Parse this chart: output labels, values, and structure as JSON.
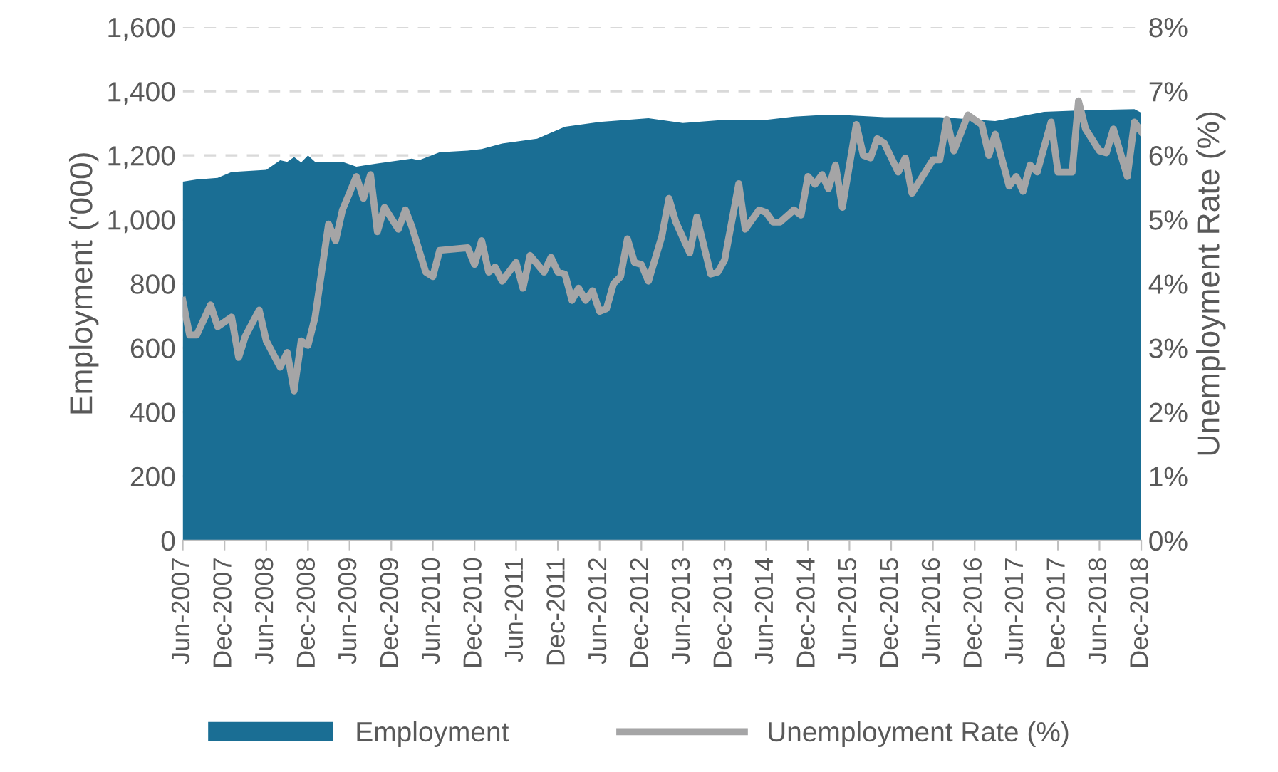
{
  "chart_data": {
    "type": "area",
    "ylabel": "Employment ('000)",
    "y2label": "Unemployment Rate (%)",
    "series": [
      {
        "name": "Employment",
        "color": "#1a6e94",
        "x": [
          "2007-06",
          "2007-08",
          "2007-11",
          "2008-01",
          "2008-06",
          "2008-08",
          "2008-09",
          "2008-10",
          "2008-11",
          "2008-12",
          "2009-01",
          "2009-05",
          "2009-07",
          "2009-10",
          "2010-03",
          "2010-04",
          "2010-07",
          "2010-11",
          "2011-01",
          "2011-04",
          "2011-09",
          "2012-01",
          "2012-06",
          "2013-01",
          "2013-06",
          "2013-12",
          "2014-06",
          "2014-10",
          "2015-02",
          "2015-05",
          "2015-11",
          "2016-07",
          "2017-03",
          "2017-10",
          "2018-04",
          "2018-11",
          "2018-12"
        ],
        "values": [
          1118,
          1125,
          1130,
          1148,
          1155,
          1185,
          1180,
          1195,
          1178,
          1200,
          1180,
          1180,
          1165,
          1175,
          1190,
          1185,
          1210,
          1215,
          1220,
          1237,
          1252,
          1289,
          1304,
          1316,
          1301,
          1311,
          1311,
          1321,
          1326,
          1326,
          1319,
          1319,
          1307,
          1336,
          1341,
          1344,
          1333
        ]
      },
      {
        "name": "Unemployment Rate (%)",
        "type": "line",
        "axis": "y2",
        "color": "#a5a5a6",
        "x": [
          "2007-06",
          "2007-07",
          "2007-08",
          "2007-10",
          "2007-11",
          "2008-01",
          "2008-02",
          "2008-03",
          "2008-05",
          "2008-06",
          "2008-08",
          "2008-09",
          "2008-10",
          "2008-11",
          "2008-12",
          "2009-01",
          "2009-03",
          "2009-04",
          "2009-05",
          "2009-07",
          "2009-08",
          "2009-09",
          "2009-10",
          "2009-11",
          "2010-01",
          "2010-02",
          "2010-03",
          "2010-05",
          "2010-06",
          "2010-07",
          "2010-11",
          "2010-12",
          "2011-01",
          "2011-02",
          "2011-03",
          "2011-04",
          "2011-06",
          "2011-07",
          "2011-08",
          "2011-10",
          "2011-11",
          "2011-12",
          "2012-01",
          "2012-02",
          "2012-03",
          "2012-04",
          "2012-05",
          "2012-06",
          "2012-07",
          "2012-08",
          "2012-09",
          "2012-10",
          "2012-11",
          "2012-12",
          "2013-01",
          "2013-03",
          "2013-04",
          "2013-05",
          "2013-07",
          "2013-08",
          "2013-10",
          "2013-11",
          "2013-12",
          "2014-02",
          "2014-03",
          "2014-05",
          "2014-06",
          "2014-07",
          "2014-08",
          "2014-10",
          "2014-11",
          "2014-12",
          "2015-01",
          "2015-02",
          "2015-03",
          "2015-04",
          "2015-05",
          "2015-07",
          "2015-08",
          "2015-09",
          "2015-10",
          "2015-11",
          "2016-01",
          "2016-02",
          "2016-03",
          "2016-06",
          "2016-07",
          "2016-08",
          "2016-09",
          "2016-11",
          "2017-01",
          "2017-02",
          "2017-03",
          "2017-05",
          "2017-06",
          "2017-07",
          "2017-08",
          "2017-09",
          "2017-11",
          "2017-12",
          "2018-02",
          "2018-03",
          "2018-04",
          "2018-06",
          "2018-07",
          "2018-08",
          "2018-10",
          "2018-11",
          "2018-12"
        ],
        "values": [
          3.74,
          3.2,
          3.2,
          3.67,
          3.33,
          3.48,
          2.85,
          3.18,
          3.59,
          3.11,
          2.7,
          2.93,
          2.33,
          3.11,
          3.04,
          3.48,
          4.93,
          4.67,
          5.15,
          5.67,
          5.33,
          5.7,
          4.81,
          5.19,
          4.85,
          5.15,
          4.89,
          4.18,
          4.11,
          4.52,
          4.56,
          4.3,
          4.67,
          4.18,
          4.26,
          4.04,
          4.33,
          3.93,
          4.44,
          4.18,
          4.41,
          4.18,
          4.15,
          3.74,
          3.93,
          3.74,
          3.89,
          3.57,
          3.61,
          4.0,
          4.11,
          4.7,
          4.33,
          4.3,
          4.04,
          4.74,
          5.33,
          4.96,
          4.48,
          5.04,
          4.15,
          4.18,
          4.37,
          5.56,
          4.85,
          5.15,
          5.11,
          4.96,
          4.96,
          5.15,
          5.07,
          5.67,
          5.55,
          5.7,
          5.48,
          5.85,
          5.19,
          6.48,
          6.0,
          5.96,
          6.26,
          6.19,
          5.74,
          5.96,
          5.41,
          5.93,
          5.93,
          6.56,
          6.07,
          6.63,
          6.48,
          6.0,
          6.33,
          5.52,
          5.67,
          5.44,
          5.85,
          5.74,
          6.52,
          5.74,
          5.74,
          6.85,
          6.41,
          6.07,
          6.04,
          6.41,
          5.67,
          6.52,
          6.37
        ]
      }
    ],
    "xlim": [
      "2007-06",
      "2018-12"
    ],
    "xticks": [
      {
        "value": "2007-06",
        "label": "Jun-2007"
      },
      {
        "value": "2007-12",
        "label": "Dec-2007"
      },
      {
        "value": "2008-06",
        "label": "Jun-2008"
      },
      {
        "value": "2008-12",
        "label": "Dec-2008"
      },
      {
        "value": "2009-06",
        "label": "Jun-2009"
      },
      {
        "value": "2009-12",
        "label": "Dec-2009"
      },
      {
        "value": "2010-06",
        "label": "Jun-2010"
      },
      {
        "value": "2010-12",
        "label": "Dec-2010"
      },
      {
        "value": "2011-06",
        "label": "Jun-2011"
      },
      {
        "value": "2011-12",
        "label": "Dec-2011"
      },
      {
        "value": "2012-06",
        "label": "Jun-2012"
      },
      {
        "value": "2012-12",
        "label": "Dec-2012"
      },
      {
        "value": "2013-06",
        "label": "Jun-2013"
      },
      {
        "value": "2013-12",
        "label": "Dec-2013"
      },
      {
        "value": "2014-06",
        "label": "Jun-2014"
      },
      {
        "value": "2014-12",
        "label": "Dec-2014"
      },
      {
        "value": "2015-06",
        "label": "Jun-2015"
      },
      {
        "value": "2015-12",
        "label": "Dec-2015"
      },
      {
        "value": "2016-06",
        "label": "Jun-2016"
      },
      {
        "value": "2016-12",
        "label": "Dec-2016"
      },
      {
        "value": "2017-06",
        "label": "Jun-2017"
      },
      {
        "value": "2017-12",
        "label": "Dec-2017"
      },
      {
        "value": "2018-06",
        "label": "Jun-2018"
      },
      {
        "value": "2018-12",
        "label": "Dec-2018"
      }
    ],
    "ylim": [
      0,
      1600
    ],
    "yticks": [
      0,
      200,
      400,
      600,
      800,
      {
        "value": 1000,
        "label": "1,000"
      },
      {
        "value": 1200,
        "label": "1,200"
      },
      {
        "value": 1400,
        "label": "1,400"
      },
      {
        "value": 1600,
        "label": "1,600"
      }
    ],
    "y2lim": [
      0,
      8
    ],
    "y2ticks": [
      {
        "value": 0,
        "label": "0%"
      },
      {
        "value": 1,
        "label": "1%"
      },
      {
        "value": 2,
        "label": "2%"
      },
      {
        "value": 3,
        "label": "3%"
      },
      {
        "value": 4,
        "label": "4%"
      },
      {
        "value": 5,
        "label": "5%"
      },
      {
        "value": 6,
        "label": "6%"
      },
      {
        "value": 7,
        "label": "7%"
      },
      {
        "value": 8,
        "label": "8%"
      }
    ],
    "grid": "y",
    "legend": "bottom",
    "marker": "none",
    "line_style": "solid"
  }
}
